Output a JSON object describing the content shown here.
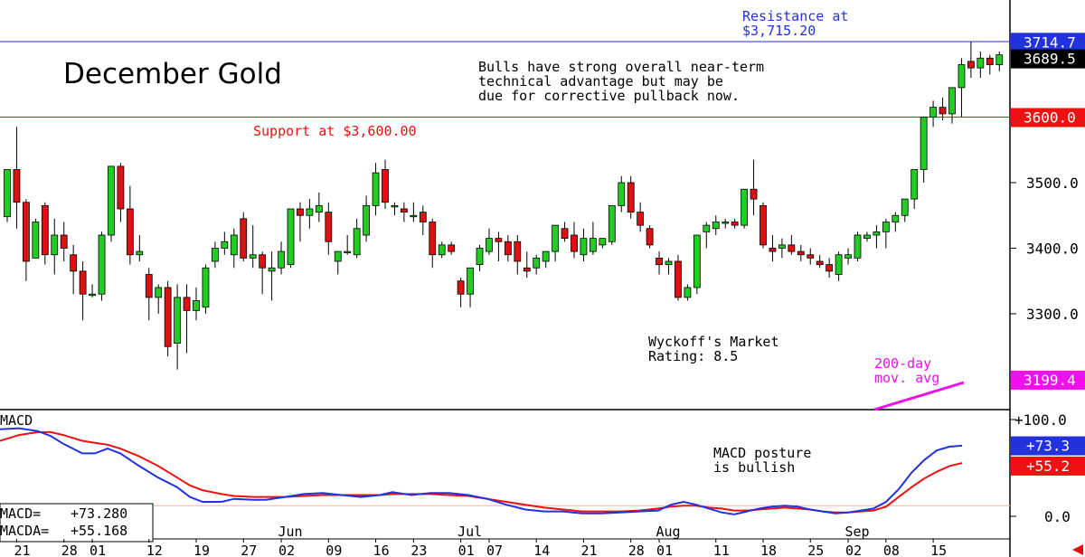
{
  "chart_data": {
    "type": "candlestick",
    "title": "December Gold",
    "commentary": [
      "Bulls have strong overall near-term",
      "technical advantage but may be",
      "due for corrective pullback now."
    ],
    "resistance": {
      "label_lines": [
        "Resistance at",
        "$3,715.20"
      ],
      "value": 3715.2
    },
    "support": {
      "label": "Support at $3,600.00",
      "value": 3600.0
    },
    "rating_lines": [
      "Wyckoff's Market",
      "Rating: 8.5"
    ],
    "ma_label_lines": [
      "200-day",
      "mov. avg"
    ],
    "price_axis": {
      "ylim": [
        3200,
        3720
      ],
      "ticks": [
        3300,
        3400,
        3500
      ],
      "tick_labels": [
        "3300.0",
        "3400.0",
        "3500.0"
      ],
      "right_labels": [
        {
          "value": 3714.7,
          "text": "3714.7",
          "color": "#2233dd"
        },
        {
          "value": 3689.5,
          "text": "3689.5",
          "color": "#000000"
        },
        {
          "value": 3600.0,
          "text": "3600.0",
          "color": "#ee1111"
        },
        {
          "value": 3199.4,
          "text": "3199.4",
          "color": "#ee11ee"
        }
      ]
    },
    "colors": {
      "up": "#22cc22",
      "down": "#dd1111",
      "macd": "#2233dd",
      "macda": "#ee1111",
      "ma": "#ee11ee"
    },
    "candles": [
      [
        3448,
        3520,
        3440,
        3520
      ],
      [
        3520,
        3585,
        3430,
        3470
      ],
      [
        3470,
        3475,
        3350,
        3380
      ],
      [
        3385,
        3445,
        3385,
        3440
      ],
      [
        3465,
        3470,
        3375,
        3390
      ],
      [
        3390,
        3445,
        3360,
        3420
      ],
      [
        3420,
        3440,
        3380,
        3400
      ],
      [
        3390,
        3405,
        3330,
        3365
      ],
      [
        3365,
        3380,
        3290,
        3330
      ],
      [
        3330,
        3345,
        3325,
        3330
      ],
      [
        3330,
        3425,
        3320,
        3420
      ],
      [
        3420,
        3525,
        3410,
        3525
      ],
      [
        3525,
        3530,
        3440,
        3460
      ],
      [
        3460,
        3495,
        3375,
        3390
      ],
      [
        3390,
        3420,
        3380,
        3395
      ],
      [
        3360,
        3370,
        3290,
        3325
      ],
      [
        3325,
        3345,
        3300,
        3340
      ],
      [
        3340,
        3350,
        3235,
        3250
      ],
      [
        3255,
        3345,
        3215,
        3325
      ],
      [
        3325,
        3345,
        3240,
        3305
      ],
      [
        3305,
        3340,
        3290,
        3320
      ],
      [
        3310,
        3375,
        3300,
        3370
      ],
      [
        3380,
        3410,
        3370,
        3400
      ],
      [
        3400,
        3425,
        3390,
        3410
      ],
      [
        3390,
        3430,
        3370,
        3420
      ],
      [
        3445,
        3455,
        3380,
        3385
      ],
      [
        3385,
        3435,
        3370,
        3390
      ],
      [
        3390,
        3395,
        3330,
        3370
      ],
      [
        3365,
        3395,
        3320,
        3370
      ],
      [
        3370,
        3410,
        3360,
        3395
      ],
      [
        3375,
        3460,
        3370,
        3460
      ],
      [
        3460,
        3470,
        3410,
        3450
      ],
      [
        3450,
        3475,
        3430,
        3460
      ],
      [
        3455,
        3485,
        3440,
        3465
      ],
      [
        3455,
        3470,
        3390,
        3410
      ],
      [
        3380,
        3390,
        3360,
        3395
      ],
      [
        3395,
        3420,
        3390,
        3395
      ],
      [
        3390,
        3445,
        3385,
        3430
      ],
      [
        3420,
        3480,
        3410,
        3465
      ],
      [
        3465,
        3530,
        3450,
        3515
      ],
      [
        3520,
        3535,
        3460,
        3470
      ],
      [
        3465,
        3470,
        3450,
        3465
      ],
      [
        3460,
        3470,
        3440,
        3455
      ],
      [
        3450,
        3470,
        3440,
        3450
      ],
      [
        3455,
        3465,
        3420,
        3440
      ],
      [
        3440,
        3445,
        3370,
        3390
      ],
      [
        3390,
        3410,
        3385,
        3405
      ],
      [
        3405,
        3410,
        3390,
        3395
      ],
      [
        3350,
        3355,
        3310,
        3330
      ],
      [
        3330,
        3370,
        3310,
        3370
      ],
      [
        3375,
        3405,
        3365,
        3400
      ],
      [
        3395,
        3430,
        3390,
        3415
      ],
      [
        3415,
        3425,
        3380,
        3410
      ],
      [
        3410,
        3420,
        3380,
        3390
      ],
      [
        3410,
        3420,
        3360,
        3380
      ],
      [
        3370,
        3395,
        3355,
        3365
      ],
      [
        3370,
        3390,
        3360,
        3385
      ],
      [
        3380,
        3390,
        3370,
        3395
      ],
      [
        3395,
        3435,
        3380,
        3435
      ],
      [
        3430,
        3440,
        3410,
        3415
      ],
      [
        3420,
        3440,
        3385,
        3395
      ],
      [
        3390,
        3430,
        3380,
        3415
      ],
      [
        3395,
        3440,
        3390,
        3415
      ],
      [
        3405,
        3415,
        3400,
        3415
      ],
      [
        3410,
        3465,
        3405,
        3465
      ],
      [
        3465,
        3510,
        3455,
        3500
      ],
      [
        3500,
        3510,
        3445,
        3455
      ],
      [
        3455,
        3470,
        3425,
        3435
      ],
      [
        3430,
        3435,
        3400,
        3405
      ],
      [
        3385,
        3395,
        3360,
        3375
      ],
      [
        3375,
        3385,
        3360,
        3380
      ],
      [
        3380,
        3390,
        3320,
        3325
      ],
      [
        3325,
        3345,
        3320,
        3340
      ],
      [
        3340,
        3420,
        3330,
        3420
      ],
      [
        3425,
        3440,
        3400,
        3435
      ],
      [
        3430,
        3450,
        3420,
        3440
      ],
      [
        3440,
        3445,
        3430,
        3440
      ],
      [
        3440,
        3445,
        3430,
        3435
      ],
      [
        3435,
        3490,
        3430,
        3490
      ],
      [
        3490,
        3535,
        3450,
        3475
      ],
      [
        3465,
        3470,
        3400,
        3405
      ],
      [
        3400,
        3420,
        3380,
        3395
      ],
      [
        3400,
        3415,
        3385,
        3405
      ],
      [
        3405,
        3420,
        3390,
        3395
      ],
      [
        3395,
        3405,
        3380,
        3390
      ],
      [
        3390,
        3400,
        3375,
        3385
      ],
      [
        3380,
        3390,
        3370,
        3375
      ],
      [
        3375,
        3385,
        3355,
        3365
      ],
      [
        3360,
        3395,
        3350,
        3390
      ],
      [
        3385,
        3400,
        3375,
        3390
      ],
      [
        3385,
        3425,
        3380,
        3420
      ],
      [
        3415,
        3425,
        3410,
        3420
      ],
      [
        3420,
        3435,
        3400,
        3425
      ],
      [
        3425,
        3445,
        3400,
        3440
      ],
      [
        3440,
        3455,
        3425,
        3450
      ],
      [
        3450,
        3475,
        3440,
        3475
      ],
      [
        3475,
        3520,
        3460,
        3520
      ],
      [
        3520,
        3600,
        3500,
        3600
      ],
      [
        3600,
        3625,
        3585,
        3615
      ],
      [
        3615,
        3630,
        3595,
        3605
      ],
      [
        3605,
        3640,
        3590,
        3645
      ],
      [
        3645,
        3690,
        3600,
        3680
      ],
      [
        3685,
        3715,
        3660,
        3675
      ],
      [
        3675,
        3700,
        3660,
        3690
      ],
      [
        3690,
        3695,
        3665,
        3680
      ],
      [
        3680,
        3700,
        3670,
        3695
      ]
    ],
    "macd_panel": {
      "title": "MACD",
      "ylim": [
        -5,
        110
      ],
      "ticks": [
        0,
        100
      ],
      "tick_labels": [
        "0.0",
        "+100.0"
      ],
      "zero_line_value": 11,
      "macd_label": "MACD=",
      "macd_value": "+73.280",
      "macda_label": "MACDA=",
      "macda_value": "+55.168",
      "right_macd": "+73.3",
      "right_macda": "+55.2",
      "posture_lines": [
        "MACD posture",
        "is bullish"
      ],
      "macd": [
        [
          0,
          90
        ],
        [
          3,
          91
        ],
        [
          6,
          88
        ],
        [
          8,
          83
        ],
        [
          10,
          75
        ],
        [
          13,
          65
        ],
        [
          15,
          65
        ],
        [
          17,
          70
        ],
        [
          19,
          65
        ],
        [
          22,
          52
        ],
        [
          25,
          40
        ],
        [
          28,
          30
        ],
        [
          30,
          20
        ],
        [
          32,
          15
        ],
        [
          35,
          15
        ],
        [
          37,
          18
        ],
        [
          40,
          17
        ],
        [
          42,
          17
        ],
        [
          45,
          20
        ],
        [
          48,
          23
        ],
        [
          51,
          24
        ],
        [
          54,
          22
        ],
        [
          57,
          20
        ],
        [
          60,
          22
        ],
        [
          62,
          25
        ],
        [
          65,
          22
        ],
        [
          68,
          24
        ],
        [
          71,
          24
        ],
        [
          74,
          22
        ],
        [
          77,
          18
        ],
        [
          80,
          12
        ],
        [
          83,
          7
        ],
        [
          86,
          5
        ],
        [
          89,
          5
        ],
        [
          92,
          3
        ],
        [
          95,
          3
        ],
        [
          98,
          4
        ],
        [
          101,
          5
        ],
        [
          104,
          6
        ],
        [
          106,
          12
        ],
        [
          108,
          15
        ],
        [
          110,
          12
        ],
        [
          112,
          8
        ],
        [
          114,
          4
        ],
        [
          116,
          2
        ],
        [
          118,
          5
        ],
        [
          120,
          8
        ],
        [
          122,
          10
        ],
        [
          124,
          11
        ],
        [
          126,
          10
        ],
        [
          128,
          7
        ],
        [
          130,
          5
        ],
        [
          132,
          3
        ],
        [
          134,
          4
        ],
        [
          136,
          6
        ],
        [
          138,
          8
        ],
        [
          140,
          15
        ],
        [
          142,
          28
        ],
        [
          144,
          45
        ],
        [
          146,
          58
        ],
        [
          148,
          68
        ],
        [
          150,
          72
        ],
        [
          152,
          73
        ]
      ],
      "macda": [
        [
          0,
          78
        ],
        [
          3,
          84
        ],
        [
          6,
          87
        ],
        [
          8,
          87
        ],
        [
          10,
          84
        ],
        [
          13,
          78
        ],
        [
          15,
          76
        ],
        [
          17,
          74
        ],
        [
          19,
          70
        ],
        [
          22,
          62
        ],
        [
          25,
          52
        ],
        [
          28,
          40
        ],
        [
          30,
          32
        ],
        [
          32,
          27
        ],
        [
          35,
          23
        ],
        [
          37,
          21
        ],
        [
          40,
          20
        ],
        [
          42,
          20
        ],
        [
          45,
          20
        ],
        [
          48,
          21
        ],
        [
          51,
          22
        ],
        [
          54,
          22
        ],
        [
          57,
          22
        ],
        [
          60,
          22
        ],
        [
          62,
          23
        ],
        [
          65,
          23
        ],
        [
          68,
          23
        ],
        [
          71,
          22
        ],
        [
          74,
          21
        ],
        [
          77,
          18
        ],
        [
          80,
          15
        ],
        [
          83,
          12
        ],
        [
          86,
          9
        ],
        [
          89,
          7
        ],
        [
          92,
          5
        ],
        [
          95,
          5
        ],
        [
          98,
          5
        ],
        [
          101,
          6
        ],
        [
          104,
          8
        ],
        [
          106,
          10
        ],
        [
          108,
          11
        ],
        [
          110,
          11
        ],
        [
          112,
          9
        ],
        [
          114,
          8
        ],
        [
          116,
          6
        ],
        [
          118,
          6
        ],
        [
          120,
          7
        ],
        [
          122,
          8
        ],
        [
          124,
          9
        ],
        [
          126,
          8
        ],
        [
          128,
          7
        ],
        [
          130,
          5
        ],
        [
          132,
          4
        ],
        [
          134,
          4
        ],
        [
          136,
          5
        ],
        [
          138,
          6
        ],
        [
          140,
          10
        ],
        [
          142,
          20
        ],
        [
          144,
          30
        ],
        [
          146,
          39
        ],
        [
          148,
          46
        ],
        [
          150,
          52
        ],
        [
          152,
          55
        ]
      ]
    },
    "x_axis": {
      "day_labels": [
        {
          "i": 1,
          "t": "21"
        },
        {
          "i": 6,
          "t": "28"
        },
        {
          "i": 9,
          "t": "01"
        },
        {
          "i": 15,
          "t": "12"
        },
        {
          "i": 20,
          "t": "19"
        },
        {
          "i": 25,
          "t": "27"
        },
        {
          "i": 29,
          "t": "02"
        },
        {
          "i": 34,
          "t": "09"
        },
        {
          "i": 39,
          "t": "16"
        },
        {
          "i": 43,
          "t": "23"
        },
        {
          "i": 48,
          "t": "01"
        },
        {
          "i": 51,
          "t": "07"
        },
        {
          "i": 56,
          "t": "14"
        },
        {
          "i": 61,
          "t": "21"
        },
        {
          "i": 66,
          "t": "28"
        },
        {
          "i": 69,
          "t": "01"
        },
        {
          "i": 75,
          "t": "11"
        },
        {
          "i": 80,
          "t": "18"
        },
        {
          "i": 85,
          "t": "25"
        },
        {
          "i": 89,
          "t": "02"
        },
        {
          "i": 93,
          "t": "08"
        },
        {
          "i": 98,
          "t": "15"
        }
      ],
      "month_labels": [
        {
          "i": 30,
          "t": "Jun"
        },
        {
          "i": 49,
          "t": "Jul"
        },
        {
          "i": 70,
          "t": "Aug"
        },
        {
          "i": 90,
          "t": "Sep"
        }
      ]
    }
  }
}
